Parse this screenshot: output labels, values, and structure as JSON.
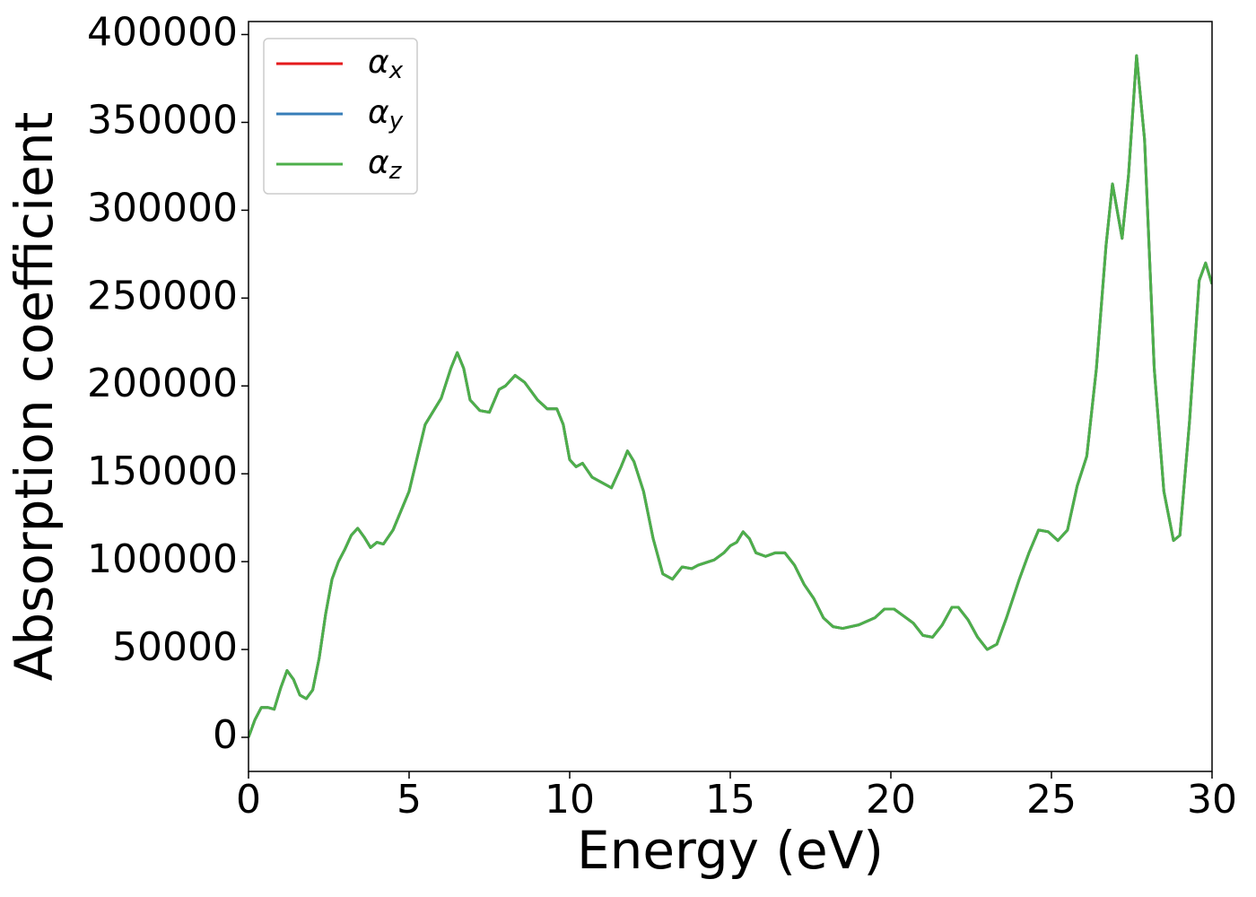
{
  "chart_data": {
    "type": "line",
    "xlabel": "Energy (eV)",
    "ylabel": "Absorption coefficient",
    "x": [
      0,
      0.2,
      0.4,
      0.6,
      0.8,
      1.0,
      1.2,
      1.4,
      1.6,
      1.8,
      2.0,
      2.2,
      2.4,
      2.6,
      2.8,
      3.0,
      3.2,
      3.4,
      3.6,
      3.8,
      4.0,
      4.2,
      4.5,
      5.0,
      5.5,
      6.0,
      6.3,
      6.5,
      6.7,
      6.9,
      7.2,
      7.5,
      7.8,
      8.0,
      8.3,
      8.6,
      9.0,
      9.3,
      9.6,
      9.8,
      10.0,
      10.2,
      10.4,
      10.7,
      11.0,
      11.3,
      11.6,
      11.8,
      12.0,
      12.3,
      12.6,
      12.9,
      13.2,
      13.5,
      13.8,
      14.0,
      14.5,
      14.8,
      15.0,
      15.2,
      15.4,
      15.6,
      15.8,
      16.1,
      16.4,
      16.7,
      17.0,
      17.3,
      17.6,
      17.9,
      18.2,
      18.5,
      19.0,
      19.5,
      19.8,
      20.1,
      20.4,
      20.7,
      21.0,
      21.3,
      21.6,
      21.9,
      22.1,
      22.4,
      22.7,
      23.0,
      23.3,
      23.6,
      24.0,
      24.3,
      24.6,
      24.9,
      25.2,
      25.5,
      25.8,
      26.1,
      26.4,
      26.7,
      26.9,
      27.2,
      27.4,
      27.65,
      27.9,
      28.2,
      28.5,
      28.8,
      29.0,
      29.3,
      29.6,
      29.8,
      30.0
    ],
    "series": [
      {
        "name": "αx",
        "color": "#e41a1c",
        "values": [
          0,
          10000,
          17000,
          17000,
          16000,
          28000,
          38000,
          33000,
          24000,
          22000,
          27000,
          45000,
          70000,
          90000,
          100000,
          107000,
          115000,
          119000,
          114000,
          108000,
          111000,
          110000,
          118000,
          140000,
          178000,
          193000,
          210000,
          219000,
          210000,
          192000,
          186000,
          185000,
          198000,
          200000,
          206000,
          202000,
          192000,
          187000,
          187000,
          178000,
          158000,
          154000,
          156000,
          148000,
          145000,
          142000,
          154000,
          163000,
          157000,
          140000,
          113000,
          93000,
          90000,
          97000,
          96000,
          98000,
          101000,
          105000,
          109000,
          111000,
          117000,
          113000,
          105000,
          103000,
          105000,
          105000,
          98000,
          87000,
          79000,
          68000,
          63000,
          62000,
          64000,
          68000,
          73000,
          73000,
          69000,
          65000,
          58000,
          57000,
          64000,
          74000,
          74000,
          67000,
          57000,
          50000,
          53000,
          68000,
          90000,
          105000,
          118000,
          117000,
          112000,
          118000,
          143000,
          160000,
          210000,
          280000,
          315000,
          284000,
          320000,
          388000,
          340000,
          210000,
          140000,
          112000,
          115000,
          180000,
          260000,
          270000,
          258000
        ]
      },
      {
        "name": "αy",
        "color": "#377eb8",
        "values": [
          0,
          10000,
          17000,
          17000,
          16000,
          28000,
          38000,
          33000,
          24000,
          22000,
          27000,
          45000,
          70000,
          90000,
          100000,
          107000,
          115000,
          119000,
          114000,
          108000,
          111000,
          110000,
          118000,
          140000,
          178000,
          193000,
          210000,
          219000,
          210000,
          192000,
          186000,
          185000,
          198000,
          200000,
          206000,
          202000,
          192000,
          187000,
          187000,
          178000,
          158000,
          154000,
          156000,
          148000,
          145000,
          142000,
          154000,
          163000,
          157000,
          140000,
          113000,
          93000,
          90000,
          97000,
          96000,
          98000,
          101000,
          105000,
          109000,
          111000,
          117000,
          113000,
          105000,
          103000,
          105000,
          105000,
          98000,
          87000,
          79000,
          68000,
          63000,
          62000,
          64000,
          68000,
          73000,
          73000,
          69000,
          65000,
          58000,
          57000,
          64000,
          74000,
          74000,
          67000,
          57000,
          50000,
          53000,
          68000,
          90000,
          105000,
          118000,
          117000,
          112000,
          118000,
          143000,
          160000,
          210000,
          280000,
          315000,
          284000,
          320000,
          388000,
          340000,
          210000,
          140000,
          112000,
          115000,
          180000,
          260000,
          270000,
          258000
        ]
      },
      {
        "name": "αz",
        "color": "#4daf4a",
        "values": [
          0,
          10000,
          17000,
          17000,
          16000,
          28000,
          38000,
          33000,
          24000,
          22000,
          27000,
          45000,
          70000,
          90000,
          100000,
          107000,
          115000,
          119000,
          114000,
          108000,
          111000,
          110000,
          118000,
          140000,
          178000,
          193000,
          210000,
          219000,
          210000,
          192000,
          186000,
          185000,
          198000,
          200000,
          206000,
          202000,
          192000,
          187000,
          187000,
          178000,
          158000,
          154000,
          156000,
          148000,
          145000,
          142000,
          154000,
          163000,
          157000,
          140000,
          113000,
          93000,
          90000,
          97000,
          96000,
          98000,
          101000,
          105000,
          109000,
          111000,
          117000,
          113000,
          105000,
          103000,
          105000,
          105000,
          98000,
          87000,
          79000,
          68000,
          63000,
          62000,
          64000,
          68000,
          73000,
          73000,
          69000,
          65000,
          58000,
          57000,
          64000,
          74000,
          74000,
          67000,
          57000,
          50000,
          53000,
          68000,
          90000,
          105000,
          118000,
          117000,
          112000,
          118000,
          143000,
          160000,
          210000,
          280000,
          315000,
          284000,
          320000,
          388000,
          340000,
          210000,
          140000,
          112000,
          115000,
          180000,
          260000,
          270000,
          258000
        ]
      }
    ],
    "xlim": [
      0,
      30
    ],
    "xticks": [
      0,
      5,
      10,
      15,
      20,
      25,
      30
    ],
    "ylim": [
      -19400,
      407400
    ],
    "yticks": [
      0,
      50000,
      100000,
      150000,
      200000,
      250000,
      300000,
      350000,
      400000
    ],
    "grid": false,
    "legend": "upper left"
  }
}
